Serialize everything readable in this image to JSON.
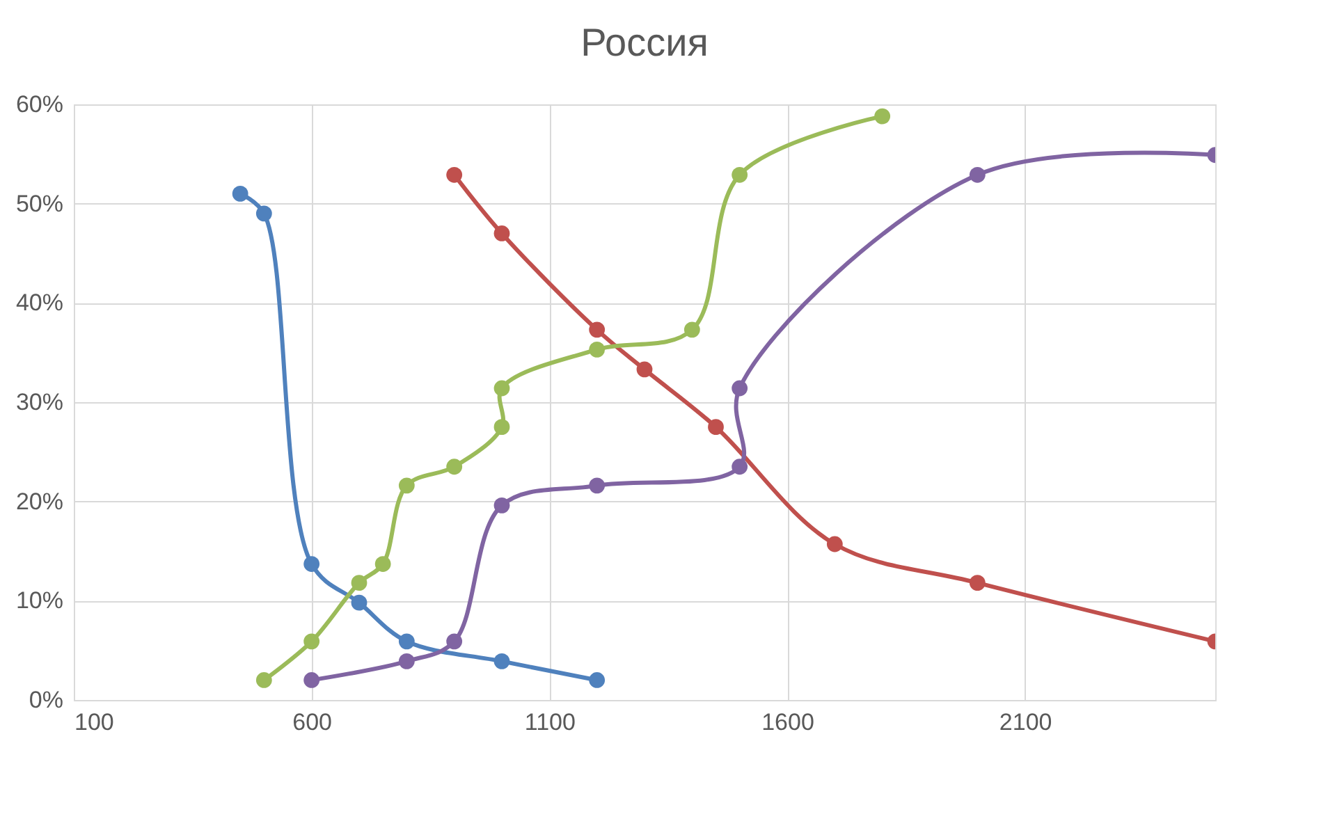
{
  "chart_data": {
    "type": "line",
    "title": "Россия",
    "xlim": [
      100,
      2500
    ],
    "xticks": [
      100,
      600,
      1100,
      1600,
      2100
    ],
    "ylim": [
      0,
      60
    ],
    "yticks": [
      {
        "value": 0,
        "label": "0%"
      },
      {
        "value": 10,
        "label": "10%"
      },
      {
        "value": 20,
        "label": "20%"
      },
      {
        "value": 30,
        "label": "30%"
      },
      {
        "value": 40,
        "label": "40%"
      },
      {
        "value": 50,
        "label": "50%"
      },
      {
        "value": 60,
        "label": "60%"
      }
    ],
    "grid": true,
    "legend": false,
    "marker": "circle",
    "line_style": "solid",
    "series": [
      {
        "color": "#4f81bd",
        "x": [
          450,
          500,
          600,
          700,
          800,
          1000,
          1200
        ],
        "values": [
          51,
          49,
          13.7,
          9.8,
          5.9,
          3.9,
          2
        ]
      },
      {
        "color": "#c0504d",
        "x": [
          900,
          1000,
          1200,
          1300,
          1450,
          1700,
          2000,
          2500
        ],
        "values": [
          52.9,
          47,
          37.3,
          33.3,
          27.5,
          15.7,
          11.8,
          5.9
        ]
      },
      {
        "color": "#9bbb59",
        "x": [
          500,
          600,
          700,
          750,
          800,
          900,
          1000,
          1000,
          1200,
          1400,
          1500,
          1800
        ],
        "values": [
          2,
          5.9,
          11.8,
          13.7,
          21.6,
          23.5,
          27.5,
          31.4,
          35.3,
          37.3,
          52.9,
          58.8
        ]
      },
      {
        "color": "#8064a2",
        "x": [
          600,
          800,
          900,
          1000,
          1200,
          1500,
          1500,
          2000,
          2500
        ],
        "values": [
          2,
          3.9,
          5.9,
          19.6,
          21.6,
          23.5,
          31.4,
          52.9,
          54.9
        ]
      }
    ]
  }
}
